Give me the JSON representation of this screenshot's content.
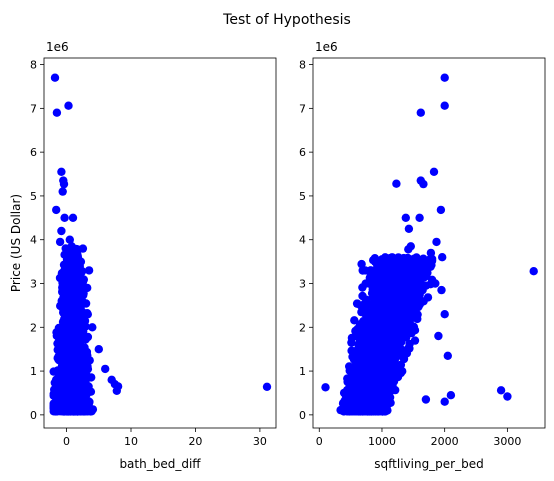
{
  "figure": {
    "title": "Test of Hypothesis",
    "marker_color": "#0000ff"
  },
  "chart_data": [
    {
      "type": "scatter",
      "title": "",
      "xlabel": "bath_bed_diff",
      "ylabel": "Price (US Dollar)",
      "y_multiplier_label": "1e6",
      "xlim": [
        -3.5,
        32.5
      ],
      "ylim": [
        -0.3,
        8.15
      ],
      "x_ticks": [
        0,
        10,
        20,
        30
      ],
      "x_tick_labels": [
        "0",
        "10",
        "20",
        "30"
      ],
      "y_ticks": [
        0,
        1,
        2,
        3,
        4,
        5,
        6,
        7,
        8
      ],
      "y_tick_labels": [
        "0",
        "1",
        "2",
        "3",
        "4",
        "5",
        "6",
        "7",
        "8"
      ],
      "grid": false,
      "cluster": {
        "x_range": [
          -2,
          8
        ],
        "y_range": [
          0.08,
          3.8
        ],
        "approx_count": 1800
      },
      "points": [
        {
          "x": -1.8,
          "y": 7.7
        },
        {
          "x": -1.5,
          "y": 6.9
        },
        {
          "x": 0.3,
          "y": 7.06
        },
        {
          "x": -0.8,
          "y": 5.55
        },
        {
          "x": -0.5,
          "y": 5.35
        },
        {
          "x": -0.4,
          "y": 5.27
        },
        {
          "x": -0.6,
          "y": 5.1
        },
        {
          "x": -1.6,
          "y": 4.68
        },
        {
          "x": -0.3,
          "y": 4.5
        },
        {
          "x": 1.0,
          "y": 4.5
        },
        {
          "x": -0.8,
          "y": 4.2
        },
        {
          "x": -1.0,
          "y": 3.95
        },
        {
          "x": 0.5,
          "y": 4.0
        },
        {
          "x": 0.8,
          "y": 3.85
        },
        {
          "x": 3.5,
          "y": 3.3
        },
        {
          "x": 3.2,
          "y": 2.9
        },
        {
          "x": 4.0,
          "y": 2.0
        },
        {
          "x": 5.0,
          "y": 1.5
        },
        {
          "x": 6.0,
          "y": 1.05
        },
        {
          "x": 7.0,
          "y": 0.8
        },
        {
          "x": 7.5,
          "y": 0.7
        },
        {
          "x": 8.0,
          "y": 0.65
        },
        {
          "x": 7.8,
          "y": 0.55
        },
        {
          "x": 31.1,
          "y": 0.64
        }
      ]
    },
    {
      "type": "scatter",
      "title": "",
      "xlabel": "sqftliving_per_bed",
      "ylabel": "",
      "y_multiplier_label": "1e6",
      "xlim": [
        -100,
        3600
      ],
      "ylim": [
        -0.3,
        8.15
      ],
      "x_ticks": [
        0,
        1000,
        2000,
        3000
      ],
      "x_tick_labels": [
        "0",
        "1000",
        "2000",
        "3000"
      ],
      "y_ticks": [
        0,
        1,
        2,
        3,
        4,
        5,
        6,
        7,
        8
      ],
      "y_tick_labels": [
        "0",
        "1",
        "2",
        "3",
        "4",
        "5",
        "6",
        "7",
        "8"
      ],
      "grid": false,
      "cluster": {
        "x_range": [
          200,
          1800
        ],
        "y_range": [
          0.08,
          3.6
        ],
        "approx_count": 2200
      },
      "points": [
        {
          "x": 2000,
          "y": 7.7
        },
        {
          "x": 1620,
          "y": 6.9
        },
        {
          "x": 2000,
          "y": 7.06
        },
        {
          "x": 1830,
          "y": 5.55
        },
        {
          "x": 1620,
          "y": 5.35
        },
        {
          "x": 1660,
          "y": 5.27
        },
        {
          "x": 1230,
          "y": 5.28
        },
        {
          "x": 1940,
          "y": 4.68
        },
        {
          "x": 1380,
          "y": 4.5
        },
        {
          "x": 1600,
          "y": 4.5
        },
        {
          "x": 1430,
          "y": 4.25
        },
        {
          "x": 1870,
          "y": 3.95
        },
        {
          "x": 1780,
          "y": 3.7
        },
        {
          "x": 1460,
          "y": 3.85
        },
        {
          "x": 1420,
          "y": 3.78
        },
        {
          "x": 1960,
          "y": 3.6
        },
        {
          "x": 1500,
          "y": 3.55
        },
        {
          "x": 1700,
          "y": 3.2
        },
        {
          "x": 1850,
          "y": 3.0
        },
        {
          "x": 1950,
          "y": 2.85
        },
        {
          "x": 2000,
          "y": 2.3
        },
        {
          "x": 1900,
          "y": 1.8
        },
        {
          "x": 2050,
          "y": 1.35
        },
        {
          "x": 2100,
          "y": 0.45
        },
        {
          "x": 2000,
          "y": 0.3
        },
        {
          "x": 1700,
          "y": 0.35
        },
        {
          "x": 2900,
          "y": 0.56
        },
        {
          "x": 3000,
          "y": 0.42
        },
        {
          "x": 3420,
          "y": 3.28
        },
        {
          "x": 100,
          "y": 0.63
        }
      ]
    }
  ]
}
